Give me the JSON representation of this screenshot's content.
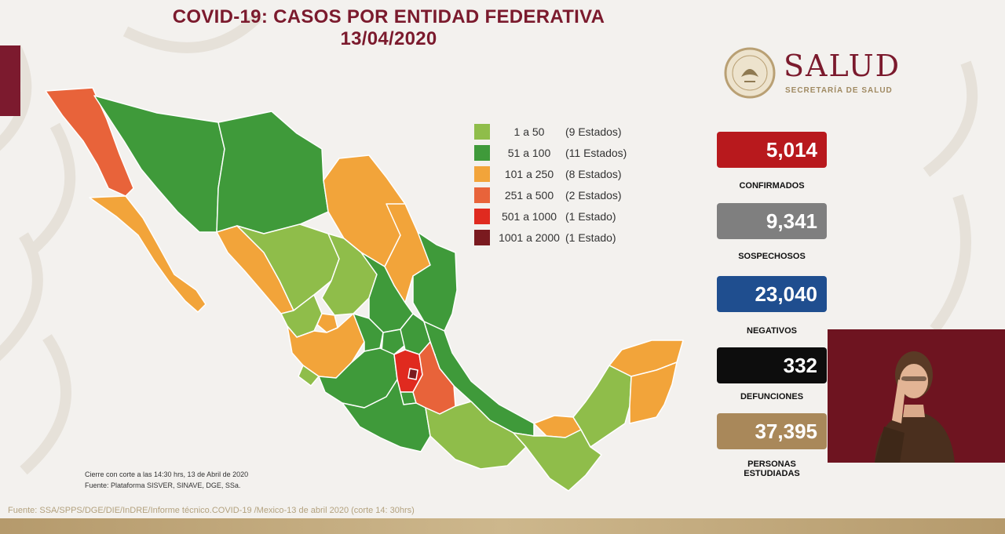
{
  "header": {
    "title_line1": "COVID-19: CASOS POR ENTIDAD FEDERATIVA",
    "title_line2": "13/04/2020"
  },
  "logo": {
    "name": "SALUD",
    "subtitle": "SECRETARÍA DE SALUD"
  },
  "legend": [
    {
      "range": "1 a 50",
      "count": "(9 Estados)",
      "color": "#8fbd4a"
    },
    {
      "range": "51 a 100",
      "count": "(11 Estados)",
      "color": "#3f9a3a"
    },
    {
      "range": "101 a 250",
      "count": "(8 Estados)",
      "color": "#f2a43a"
    },
    {
      "range": "251 a 500",
      "count": "(2 Estados)",
      "color": "#e8633a"
    },
    {
      "range": "501 a 1000",
      "count": "(1 Estado)",
      "color": "#e02a1f"
    },
    {
      "range": "1001 a 2000",
      "count": "(1 Estado)",
      "color": "#7a1a1f"
    }
  ],
  "stats": [
    {
      "value": "5,014",
      "label": "CONFIRMADOS",
      "color": "#b8191d"
    },
    {
      "value": "9,341",
      "label": "SOSPECHOSOS",
      "color": "#7f7f7f"
    },
    {
      "value": "23,040",
      "label": "NEGATIVOS",
      "color": "#1f4e8f"
    },
    {
      "value": "332",
      "label": "DEFUNCIONES",
      "color": "#0d0d0d"
    },
    {
      "value": "37,395",
      "label": "PERSONAS ESTUDIADAS",
      "label_line1": "PERSONAS",
      "label_line2": "ESTUDIADAS",
      "color": "#a9885a"
    }
  ],
  "notes": {
    "line1": "Cierre con corte a las 14:30 hrs, 13 de Abril de 2020",
    "line2": "Fuente: Plataforma SISVER, SINAVE, DGE, SSa."
  },
  "footer": "Fuente: SSA/SPPS/DGE/DIE/InDRE/Informe técnico.COVID-19 /Mexico-13 de abril 2020 (corte 14: 30hrs)",
  "map_colors": {
    "light_green": "#8fbd4a",
    "green": "#3f9a3a",
    "orange": "#f2a43a",
    "orange_red": "#e8633a",
    "red": "#e02a1f",
    "dark_red": "#7a1a1f"
  }
}
